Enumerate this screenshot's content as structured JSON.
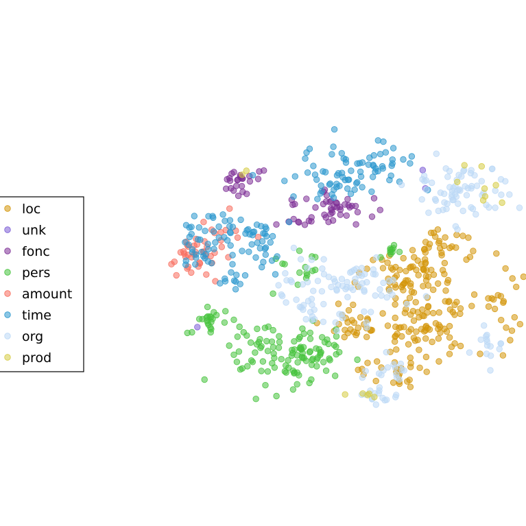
{
  "chart_data": {
    "type": "scatter",
    "title": "",
    "xlabel": "",
    "ylabel": "",
    "grid": false,
    "axes_visible": false,
    "xlim": [
      0,
      100
    ],
    "ylim": [
      0,
      100
    ],
    "legend": {
      "placement": "center-left",
      "frame": true
    },
    "marker_alpha": 0.55,
    "series": [
      {
        "name": "loc",
        "color": "#d4960a",
        "clusters": [
          {
            "cx": 72,
            "cy": 54,
            "sx": 5,
            "sy": 4,
            "n": 70
          },
          {
            "cx": 77,
            "cy": 68,
            "sx": 6,
            "sy": 5,
            "n": 80
          },
          {
            "cx": 60,
            "cy": 68,
            "sx": 3,
            "sy": 2.5,
            "n": 25
          },
          {
            "cx": 81,
            "cy": 45,
            "sx": 4,
            "sy": 3,
            "n": 25
          },
          {
            "cx": 95,
            "cy": 60,
            "sx": 2.5,
            "sy": 6,
            "n": 20
          },
          {
            "cx": 71,
            "cy": 80,
            "sx": 4,
            "sy": 3,
            "n": 25
          }
        ]
      },
      {
        "name": "unk",
        "color": "#7b5cd6",
        "clusters": [
          {
            "cx": 79,
            "cy": 28,
            "sx": 2,
            "sy": 2,
            "n": 2
          },
          {
            "cx": 22,
            "cy": 68,
            "sx": 2,
            "sy": 2,
            "n": 1
          }
        ]
      },
      {
        "name": "fonc",
        "color": "#7d2f96",
        "clusters": [
          {
            "cx": 34,
            "cy": 27,
            "sx": 2.5,
            "sy": 2,
            "n": 25
          },
          {
            "cx": 56,
            "cy": 34,
            "sx": 4,
            "sy": 2.5,
            "n": 40
          },
          {
            "cx": 47,
            "cy": 38,
            "sx": 2,
            "sy": 1.2,
            "n": 8
          }
        ]
      },
      {
        "name": "pers",
        "color": "#46c23c",
        "clusters": [
          {
            "cx": 46,
            "cy": 76,
            "sx": 8,
            "sy": 4.5,
            "n": 110
          },
          {
            "cx": 27,
            "cy": 66,
            "sx": 3,
            "sy": 2,
            "n": 22
          },
          {
            "cx": 69,
            "cy": 47,
            "sx": 1,
            "sy": 1.2,
            "n": 10
          },
          {
            "cx": 47,
            "cy": 52,
            "sx": 4,
            "sy": 3,
            "n": 15
          }
        ]
      },
      {
        "name": "amount",
        "color": "#f86c5c",
        "clusters": [
          {
            "cx": 23,
            "cy": 48,
            "sx": 2.2,
            "sy": 3,
            "n": 30
          },
          {
            "cx": 30,
            "cy": 43,
            "sx": 3,
            "sy": 4,
            "n": 15
          }
        ]
      },
      {
        "name": "time",
        "color": "#2b98ce",
        "clusters": [
          {
            "cx": 57,
            "cy": 25,
            "sx": 7,
            "sy": 4,
            "n": 60
          },
          {
            "cx": 68,
            "cy": 21,
            "sx": 3,
            "sy": 3,
            "n": 18
          },
          {
            "cx": 25,
            "cy": 44,
            "sx": 3,
            "sy": 4,
            "n": 40
          },
          {
            "cx": 37,
            "cy": 43,
            "sx": 3.5,
            "sy": 4,
            "n": 40
          },
          {
            "cx": 34,
            "cy": 55,
            "sx": 3,
            "sy": 1.5,
            "n": 10
          }
        ]
      },
      {
        "name": "org",
        "color": "#bcd8f6",
        "clusters": [
          {
            "cx": 57,
            "cy": 58,
            "sx": 7,
            "sy": 5,
            "n": 90
          },
          {
            "cx": 85,
            "cy": 30,
            "sx": 6,
            "sy": 4,
            "n": 70
          },
          {
            "cx": 68,
            "cy": 80,
            "sx": 4,
            "sy": 2,
            "n": 15
          },
          {
            "cx": 91,
            "cy": 72,
            "sx": 2,
            "sy": 3,
            "n": 15
          },
          {
            "cx": 66,
            "cy": 88,
            "sx": 3,
            "sy": 1.5,
            "n": 15
          }
        ]
      },
      {
        "name": "prod",
        "color": "#d6cc44",
        "clusters": [
          {
            "cx": 90,
            "cy": 28,
            "sx": 4,
            "sy": 3,
            "n": 8
          },
          {
            "cx": 62,
            "cy": 88,
            "sx": 2,
            "sy": 1,
            "n": 5
          },
          {
            "cx": 35,
            "cy": 25,
            "sx": 1,
            "sy": 1,
            "n": 2
          }
        ]
      }
    ]
  }
}
